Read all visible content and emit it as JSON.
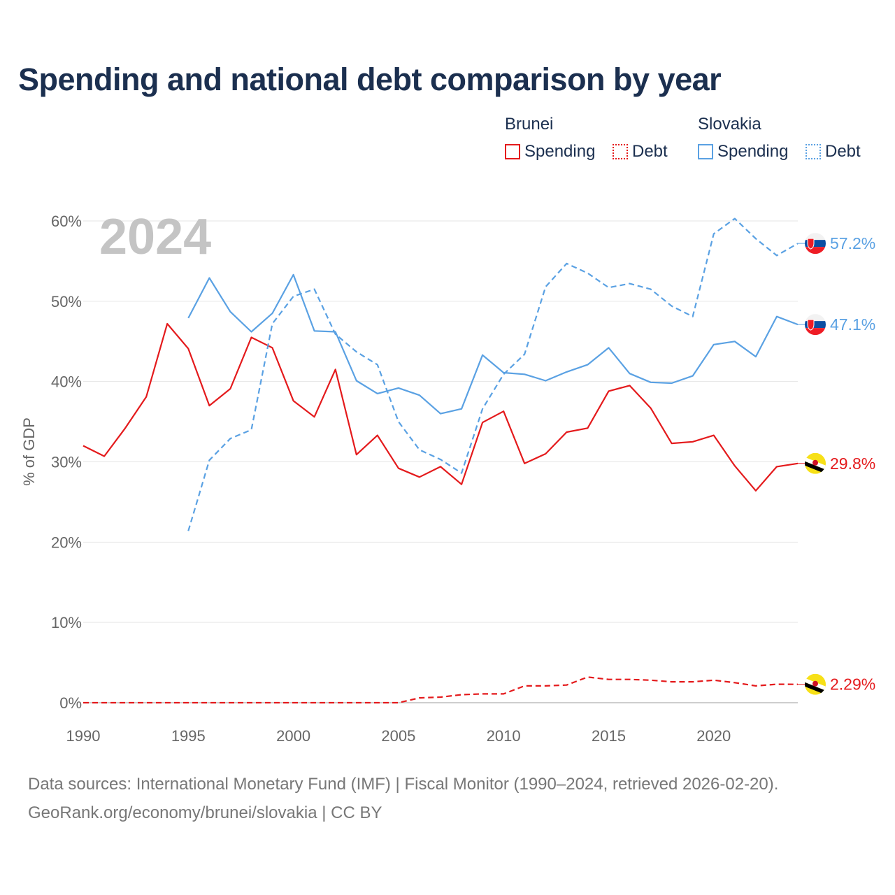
{
  "chart_data": {
    "type": "line",
    "title": "Spending and national debt comparison by year",
    "ylabel": "% of GDP",
    "xlabel": "",
    "year_label": "2024",
    "xlim": [
      1990,
      2024
    ],
    "ylim": [
      0,
      60
    ],
    "x_ticks": [
      1990,
      1995,
      2000,
      2005,
      2010,
      2015,
      2020
    ],
    "x_tick_labels": [
      "1990",
      "1995",
      "2000",
      "2005",
      "2010",
      "2015",
      "2020"
    ],
    "y_ticks": [
      0,
      10,
      20,
      30,
      40,
      50,
      60
    ],
    "y_tick_labels": [
      "0%",
      "10%",
      "20%",
      "30%",
      "40%",
      "50%",
      "60%"
    ],
    "legend": {
      "groups": [
        {
          "name": "Brunei",
          "items": [
            "Spending",
            "Debt"
          ]
        },
        {
          "name": "Slovakia",
          "items": [
            "Spending",
            "Debt"
          ]
        }
      ]
    },
    "series": [
      {
        "name": "Brunei Spending",
        "country": "Brunei",
        "metric": "Spending",
        "color": "#e41a1c",
        "dash": "solid",
        "flag": "brunei",
        "end_label": "29.8%",
        "x": [
          1990,
          1991,
          1992,
          1993,
          1994,
          1995,
          1996,
          1997,
          1998,
          1999,
          2000,
          2001,
          2002,
          2003,
          2004,
          2005,
          2006,
          2007,
          2008,
          2009,
          2010,
          2011,
          2012,
          2013,
          2014,
          2015,
          2016,
          2017,
          2018,
          2019,
          2020,
          2021,
          2022,
          2023,
          2024
        ],
        "values": [
          32.0,
          30.7,
          34.2,
          38.1,
          47.2,
          44.1,
          37.0,
          39.1,
          45.5,
          44.2,
          37.6,
          35.6,
          41.5,
          30.9,
          33.3,
          29.2,
          28.1,
          29.4,
          27.2,
          34.9,
          36.3,
          29.8,
          31.0,
          33.7,
          34.2,
          38.8,
          39.5,
          36.7,
          32.3,
          32.5,
          33.3,
          29.5,
          26.4,
          29.4,
          29.8
        ]
      },
      {
        "name": "Brunei Debt",
        "country": "Brunei",
        "metric": "Debt",
        "color": "#e41a1c",
        "dash": "dashed",
        "flag": "brunei",
        "end_label": "2.29%",
        "x": [
          1990,
          1991,
          1992,
          1993,
          1994,
          1995,
          1996,
          1997,
          1998,
          1999,
          2000,
          2001,
          2002,
          2003,
          2004,
          2005,
          2006,
          2007,
          2008,
          2009,
          2010,
          2011,
          2012,
          2013,
          2014,
          2015,
          2016,
          2017,
          2018,
          2019,
          2020,
          2021,
          2022,
          2023,
          2024
        ],
        "values": [
          0,
          0,
          0,
          0,
          0,
          0,
          0,
          0,
          0,
          0,
          0,
          0,
          0,
          0,
          0,
          0,
          0.6,
          0.7,
          1.0,
          1.1,
          1.1,
          2.1,
          2.1,
          2.2,
          3.2,
          2.9,
          2.9,
          2.8,
          2.6,
          2.6,
          2.8,
          2.5,
          2.1,
          2.3,
          2.29
        ]
      },
      {
        "name": "Slovakia Spending",
        "country": "Slovakia",
        "metric": "Spending",
        "color": "#5aa1e3",
        "dash": "solid",
        "flag": "slovakia",
        "end_label": "47.1%",
        "x": [
          1995,
          1996,
          1997,
          1998,
          1999,
          2000,
          2001,
          2002,
          2003,
          2004,
          2005,
          2006,
          2007,
          2008,
          2009,
          2010,
          2011,
          2012,
          2013,
          2014,
          2015,
          2016,
          2017,
          2018,
          2019,
          2020,
          2021,
          2022,
          2023,
          2024
        ],
        "values": [
          47.9,
          52.9,
          48.7,
          46.2,
          48.5,
          53.3,
          46.3,
          46.2,
          40.1,
          38.5,
          39.2,
          38.3,
          36.0,
          36.6,
          43.3,
          41.1,
          40.9,
          40.1,
          41.2,
          42.1,
          44.2,
          41.0,
          39.9,
          39.8,
          40.7,
          44.6,
          45.0,
          43.1,
          48.1,
          47.1
        ]
      },
      {
        "name": "Slovakia Debt",
        "country": "Slovakia",
        "metric": "Debt",
        "color": "#5aa1e3",
        "dash": "dashed",
        "flag": "slovakia",
        "end_label": "57.2%",
        "x": [
          1995,
          1996,
          1997,
          1998,
          1999,
          2000,
          2001,
          2002,
          2003,
          2004,
          2005,
          2006,
          2007,
          2008,
          2009,
          2010,
          2011,
          2012,
          2013,
          2014,
          2015,
          2016,
          2017,
          2018,
          2019,
          2020,
          2021,
          2022,
          2023,
          2024
        ],
        "values": [
          21.4,
          30.2,
          32.9,
          34.0,
          47.2,
          50.6,
          51.5,
          45.9,
          43.7,
          42.1,
          35.0,
          31.5,
          30.3,
          28.6,
          36.6,
          40.9,
          43.4,
          51.8,
          54.7,
          53.5,
          51.7,
          52.2,
          51.5,
          49.4,
          48.1,
          58.4,
          60.3,
          57.8,
          55.7,
          57.2
        ]
      }
    ]
  },
  "footer": {
    "sources": "Data sources: International Monetary Fund (IMF) | Fiscal Monitor (1990–2024, retrieved 2026-02-20).",
    "credit": "GeoRank.org/economy/brunei/slovakia | CC BY"
  }
}
